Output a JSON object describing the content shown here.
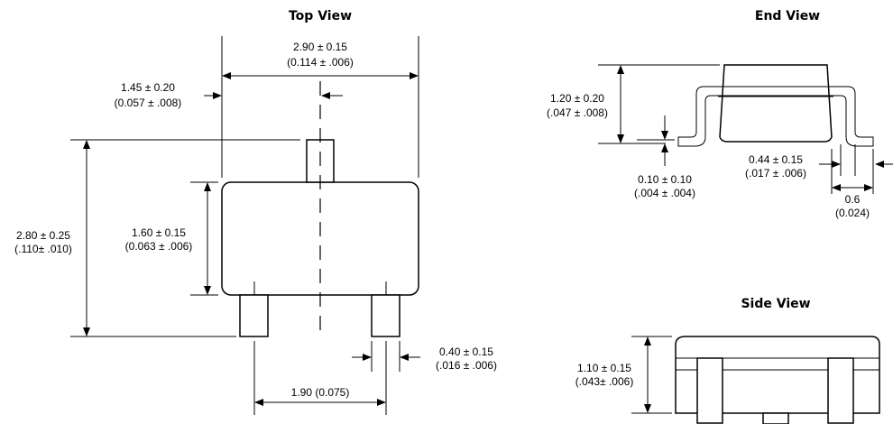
{
  "views": {
    "top": {
      "title": "Top View",
      "dim_length": {
        "mm": "2.90 ± 0.15",
        "in": "(0.114 ± .006)"
      },
      "dim_lead_offset": {
        "mm": "1.45 ± 0.20",
        "in": "(0.057 ± .008)"
      },
      "dim_total_height": {
        "mm": "2.80 ± 0.25",
        "in": "(.110± .010)"
      },
      "dim_body_width": {
        "mm": "1.60 ± 0.15",
        "in": "(0.063 ± .006)"
      },
      "dim_lead_width": {
        "mm": "0.40 ± 0.15",
        "in": "(.016 ± .006)"
      },
      "dim_lead_pitch": "1.90 (0.075)"
    },
    "end": {
      "title": "End View",
      "dim_height": {
        "mm": "1.20 ± 0.20",
        "in": "(.047 ± .008)"
      },
      "dim_standoff": {
        "mm": "0.10 ± 0.10",
        "in": "(.004 ± .004)"
      },
      "dim_lead_thickness": {
        "mm": "0.44 ± 0.15",
        "in": "(.017 ± .006)"
      },
      "dim_foot": {
        "mm": "0.6",
        "in": "(0.024)"
      }
    },
    "side": {
      "title": "Side View",
      "dim_body_height": {
        "mm": "1.10 ± 0.15",
        "in": "(.043± .006)"
      }
    }
  }
}
